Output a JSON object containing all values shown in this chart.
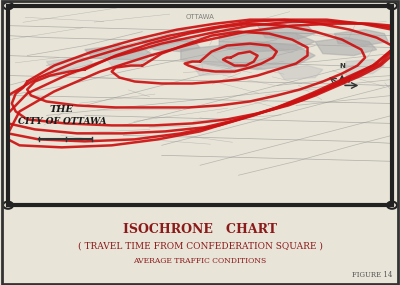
{
  "title": "ISOCHRONE   CHART",
  "subtitle": "( TRAVEL TIME FROM CONFEDERATION SQUARE )",
  "subtitle2": "AVERAGE TRAFFIC CONDITIONS",
  "figure_label": "FIGURE 14",
  "background_color": "#e8e4d8",
  "map_bg_color": "#f5f3ee",
  "border_color": "#222222",
  "title_color": "#8b1a1a",
  "map_text_color": "#1a1a1a",
  "isochrone_color": "#cc1111",
  "street_color": "#888888",
  "isochrone_linewidth": 1.8,
  "street_linewidth": 0.5
}
